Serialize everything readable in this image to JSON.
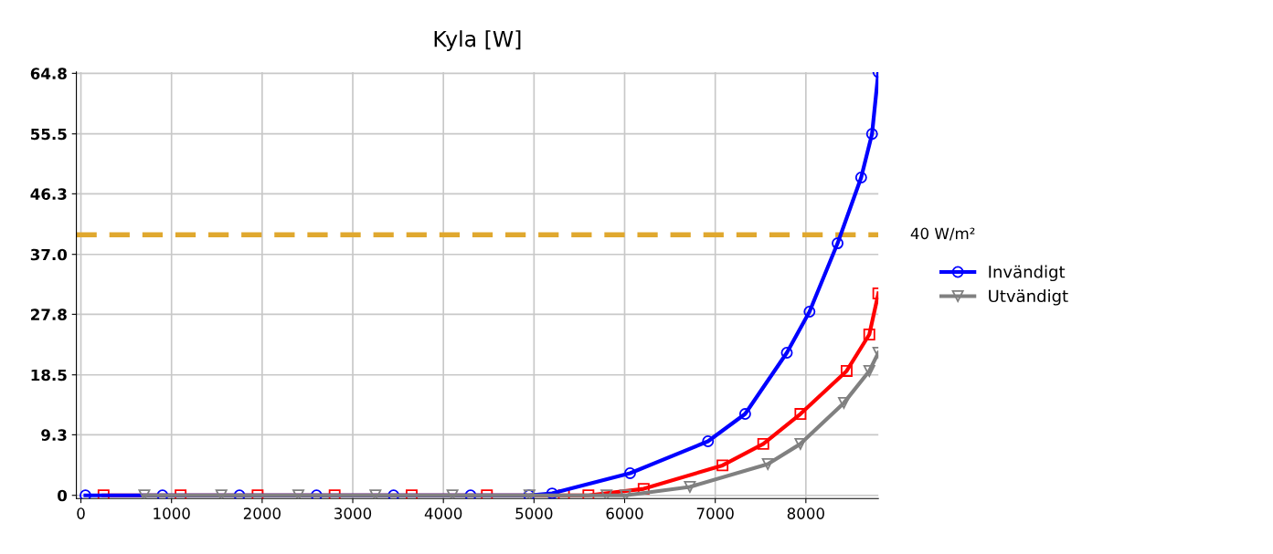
{
  "chart_data": {
    "type": "line",
    "title": "Kyla [W]",
    "series": [
      {
        "color": "#ff0000",
        "marker": "square",
        "x": [
          250,
          1100,
          1950,
          2800,
          3650,
          4480,
          5330,
          5600,
          6210,
          7080,
          7530,
          7940,
          8450,
          8700,
          8800
        ],
        "values": [
          0,
          0,
          0,
          0,
          0,
          0,
          0,
          0,
          1.0,
          4.6,
          7.9,
          12.5,
          19.1,
          24.7,
          31.0
        ]
      },
      {
        "name": "Invändigt",
        "color": "#0000ff",
        "marker": "circle",
        "x": [
          50,
          900,
          1750,
          2600,
          3450,
          4300,
          4945,
          5200,
          6060,
          6920,
          7330,
          7790,
          8040,
          8350,
          8610,
          8730,
          8800
        ],
        "values": [
          0,
          0,
          0,
          0,
          0,
          0,
          0,
          0.3,
          3.4,
          8.3,
          12.5,
          21.9,
          28.2,
          38.7,
          48.8,
          55.5,
          65.0
        ]
      },
      {
        "name": "Utvändigt",
        "color": "#808080",
        "marker": "triangle",
        "x": [
          700,
          1550,
          2400,
          3250,
          4100,
          4950,
          5800,
          6010,
          6720,
          7580,
          7940,
          8420,
          8700,
          8800
        ],
        "values": [
          0,
          0,
          0,
          0,
          0,
          0,
          0,
          0,
          1.3,
          4.8,
          7.9,
          14.2,
          19.1,
          21.9
        ]
      }
    ],
    "xlim": [
      -50,
      8800
    ],
    "xticks": [
      0,
      1000,
      2000,
      3000,
      4000,
      5000,
      6000,
      7000,
      8000
    ],
    "ylim": [
      -0.5,
      65
    ],
    "yticks": [
      0,
      9.3,
      18.5,
      27.8,
      {
        "value": 37,
        "label": "37.0"
      },
      46.3,
      55.5,
      64.8
    ],
    "ref_lines": [
      {
        "axis": "y",
        "value": 40,
        "label": "40 W/m²",
        "color": "#e0a82e",
        "line_style": "dashed"
      }
    ],
    "grid": true,
    "legend": "right",
    "line_style": "solid"
  }
}
